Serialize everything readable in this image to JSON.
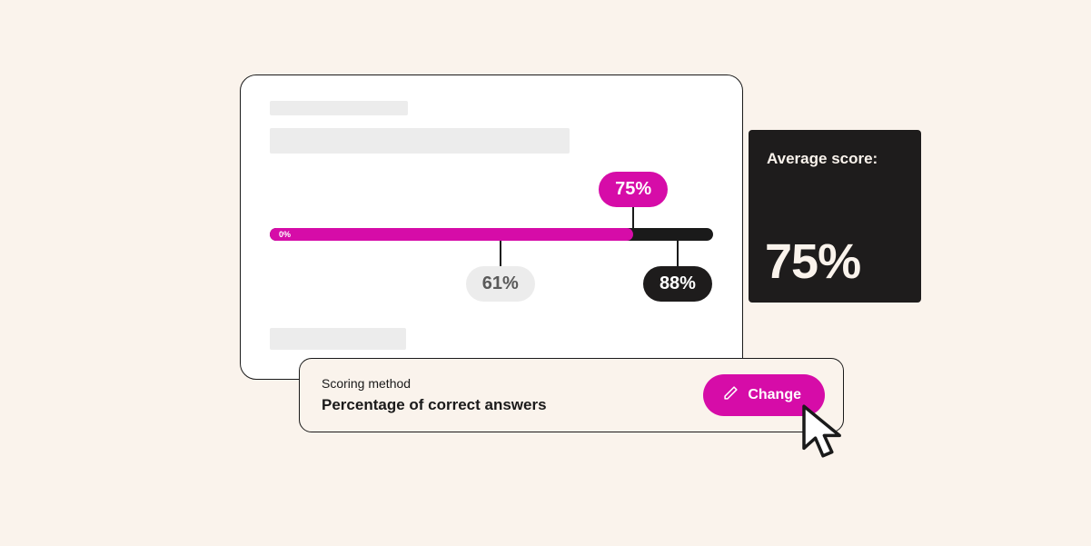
{
  "colors": {
    "page_bg": "#faf3ec",
    "card_bg": "#ffffff",
    "border": "#1a1a1a",
    "placeholder": "#ececec",
    "accent": "#d60ca8",
    "track": "#1a1a1a",
    "dark_panel_bg": "#1e1c1c",
    "dark_panel_text": "#faf3ec",
    "pill_grey_bg": "#ececec",
    "pill_grey_text": "#5a5a5a",
    "pill_dark_bg": "#1e1c1c",
    "pill_dark_text": "#ffffff",
    "pill_accent_bg": "#d60ca8",
    "pill_accent_text": "#ffffff"
  },
  "slider": {
    "min_label": "0%",
    "fill_percent": 82,
    "callouts": {
      "top": {
        "label": "75%",
        "at_percent": 82,
        "bg": "#d60ca8",
        "fg": "#ffffff"
      },
      "bottom_left": {
        "label": "61%",
        "at_percent": 52,
        "bg": "#ececec",
        "fg": "#5a5a5a"
      },
      "bottom_right": {
        "label": "88%",
        "at_percent": 92,
        "bg": "#1e1c1c",
        "fg": "#ffffff"
      }
    }
  },
  "average_panel": {
    "label": "Average score:",
    "value": "75%",
    "label_fontsize": 17,
    "value_fontsize": 54
  },
  "method_bar": {
    "label": "Scoring method",
    "value": "Percentage of correct answers",
    "button_label": "Change"
  }
}
